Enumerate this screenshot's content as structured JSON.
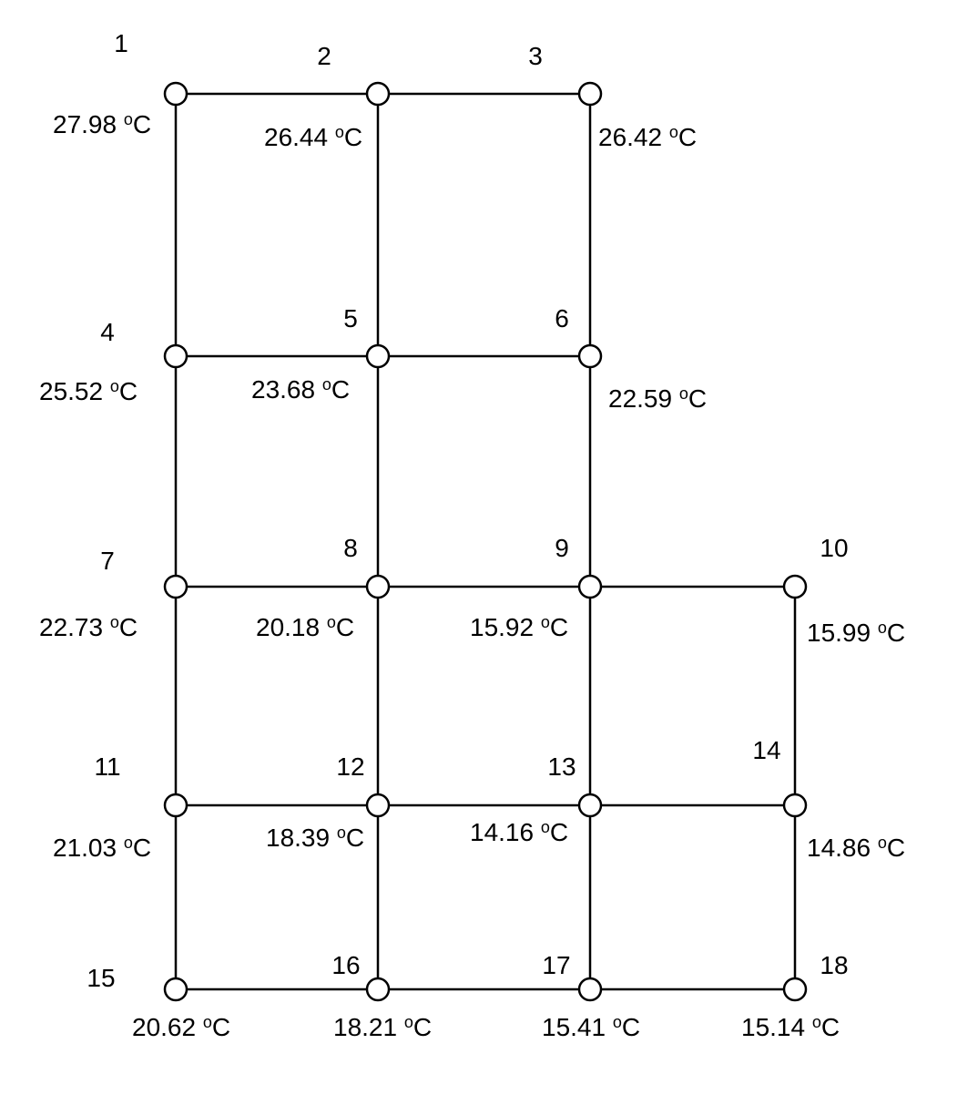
{
  "diagram": {
    "degree_symbol": "o",
    "unit": "C",
    "nodes": [
      {
        "id": "1",
        "temp": "27.98"
      },
      {
        "id": "2",
        "temp": "26.44"
      },
      {
        "id": "3",
        "temp": "26.42"
      },
      {
        "id": "4",
        "temp": "25.52"
      },
      {
        "id": "5",
        "temp": "23.68"
      },
      {
        "id": "6",
        "temp": "22.59"
      },
      {
        "id": "7",
        "temp": "22.73"
      },
      {
        "id": "8",
        "temp": "20.18"
      },
      {
        "id": "9",
        "temp": "15.92"
      },
      {
        "id": "10",
        "temp": "15.99"
      },
      {
        "id": "11",
        "temp": "21.03"
      },
      {
        "id": "12",
        "temp": "18.39"
      },
      {
        "id": "13",
        "temp": "14.16"
      },
      {
        "id": "14",
        "temp": "14.86"
      },
      {
        "id": "15",
        "temp": "20.62"
      },
      {
        "id": "16",
        "temp": "18.21"
      },
      {
        "id": "17",
        "temp": "15.41"
      },
      {
        "id": "18",
        "temp": "15.14"
      }
    ],
    "edges": [
      [
        "1",
        "2"
      ],
      [
        "2",
        "3"
      ],
      [
        "1",
        "4"
      ],
      [
        "2",
        "5"
      ],
      [
        "3",
        "6"
      ],
      [
        "4",
        "5"
      ],
      [
        "5",
        "6"
      ],
      [
        "4",
        "7"
      ],
      [
        "5",
        "8"
      ],
      [
        "6",
        "9"
      ],
      [
        "7",
        "8"
      ],
      [
        "8",
        "9"
      ],
      [
        "9",
        "10"
      ],
      [
        "7",
        "11"
      ],
      [
        "8",
        "12"
      ],
      [
        "9",
        "13"
      ],
      [
        "10",
        "14"
      ],
      [
        "11",
        "12"
      ],
      [
        "12",
        "13"
      ],
      [
        "13",
        "14"
      ],
      [
        "11",
        "15"
      ],
      [
        "12",
        "16"
      ],
      [
        "13",
        "17"
      ],
      [
        "14",
        "18"
      ],
      [
        "15",
        "16"
      ],
      [
        "16",
        "17"
      ],
      [
        "17",
        "18"
      ]
    ]
  }
}
